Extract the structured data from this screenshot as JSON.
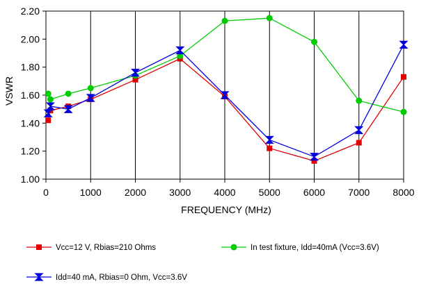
{
  "chart_data": {
    "type": "line",
    "xlabel": "FREQUENCY (MHz)",
    "ylabel": "VSWR",
    "xlim": [
      0,
      8000
    ],
    "ylim": [
      1.0,
      2.2
    ],
    "x_ticks": [
      0,
      1000,
      2000,
      3000,
      4000,
      5000,
      6000,
      7000,
      8000
    ],
    "y_ticks": [
      "1.00",
      "1.20",
      "1.40",
      "1.60",
      "1.80",
      "2.00",
      "2.20"
    ],
    "grid": "vertical",
    "legend_position": "bottom",
    "series": [
      {
        "name": "Vcc=12 V, Rbias=210 Ohms",
        "color": "#e00000",
        "marker": "square",
        "x": [
          50,
          100,
          500,
          1000,
          2000,
          3000,
          4000,
          5000,
          6000,
          7000,
          8000
        ],
        "y": [
          1.42,
          1.49,
          1.52,
          1.57,
          1.71,
          1.86,
          1.59,
          1.22,
          1.13,
          1.26,
          1.73
        ]
      },
      {
        "name": "In test fixture, Idd=40mA (Vcc=3.6V)",
        "color": "#00cc00",
        "marker": "circle",
        "x": [
          50,
          100,
          500,
          1000,
          2000,
          3000,
          4000,
          5000,
          6000,
          7000,
          8000
        ],
        "y": [
          1.61,
          1.57,
          1.61,
          1.65,
          1.74,
          1.88,
          2.13,
          2.15,
          1.98,
          1.56,
          1.48
        ]
      },
      {
        "name": "Idd=40 mA, Rbias=0 Ohm, Vcc=3.6V",
        "color": "#0000dd",
        "marker": "bowtie",
        "x": [
          50,
          100,
          500,
          1000,
          2000,
          3000,
          4000,
          5000,
          6000,
          7000,
          8000
        ],
        "y": [
          1.47,
          1.52,
          1.5,
          1.58,
          1.76,
          1.92,
          1.6,
          1.28,
          1.16,
          1.35,
          1.96
        ]
      }
    ]
  }
}
